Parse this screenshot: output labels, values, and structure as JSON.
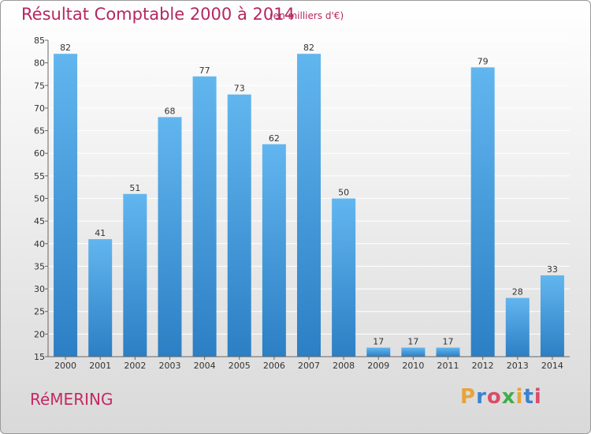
{
  "header": {
    "title": "Résultat Comptable 2000 à 2014",
    "subtitle": "(en milliers d'€)"
  },
  "footer": {
    "commune": "RéMERING",
    "logo_text": "Proxiti",
    "logo_colors": [
      "#e8a33a",
      "#3b82d0",
      "#d94d6b",
      "#3fae49",
      "#e8a33a",
      "#3b82d0",
      "#d94d6b"
    ]
  },
  "colors": {
    "title": "#b5275f",
    "bar_top": "#62b6ef",
    "bar_bottom": "#2c7fc4",
    "grid": "#ffffff"
  },
  "chart_data": {
    "type": "bar",
    "categories": [
      "2000",
      "2001",
      "2002",
      "2003",
      "2004",
      "2005",
      "2006",
      "2007",
      "2008",
      "2009",
      "2010",
      "2011",
      "2012",
      "2013",
      "2014"
    ],
    "values": [
      82,
      41,
      51,
      68,
      77,
      73,
      62,
      82,
      50,
      17,
      17,
      17,
      79,
      28,
      33
    ],
    "ylim": [
      15,
      85
    ],
    "yticks": [
      15,
      20,
      25,
      30,
      35,
      40,
      45,
      50,
      55,
      60,
      65,
      70,
      75,
      80,
      85
    ],
    "grid": true,
    "xlabel": "",
    "ylabel": ""
  }
}
